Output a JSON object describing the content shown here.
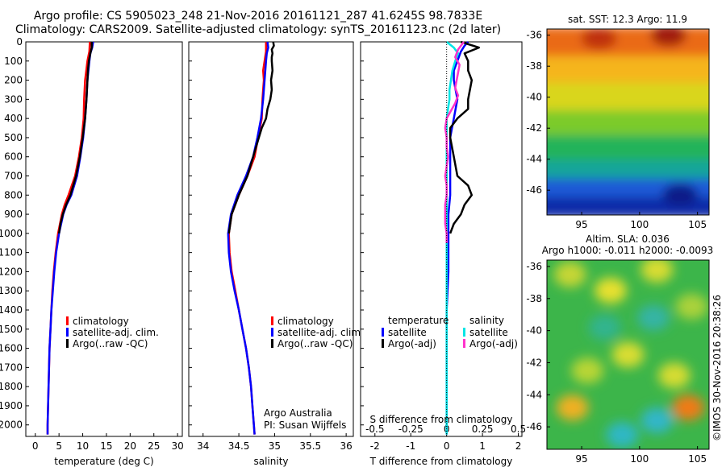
{
  "header": {
    "title_line1": "Argo profile: CS 5905023_248 21-Nov-2016 20161121_287 41.6245S 98.7833E",
    "title_line2": "Climatology: CARS2009. Satellite-adjusted climatology: synTS_20161123.nc (2d later)"
  },
  "credits": {
    "argo_line1": "Argo Australia",
    "argo_line2": "PI: Susan Wijffels",
    "imos": "©IMOS 30-Nov-2016 20:38:26"
  },
  "colors": {
    "climatology": "#ff0000",
    "satellite": "#0000ff",
    "argo": "#000000",
    "salinity_satellite": "#00e5e5",
    "salinity_argo": "#ff33cc"
  },
  "chart_data": [
    {
      "type": "line",
      "xlabel": "temperature (deg C)",
      "ylabel": "",
      "xlim": [
        -2,
        31
      ],
      "ylim": [
        2060,
        0
      ],
      "xticks": [
        0,
        5,
        10,
        15,
        20,
        25,
        30
      ],
      "yticks": [
        0,
        100,
        200,
        300,
        400,
        500,
        600,
        700,
        800,
        900,
        1000,
        1100,
        1200,
        1300,
        1400,
        1500,
        1600,
        1700,
        1800,
        1900,
        2000
      ],
      "legend": [
        "climatology",
        "satellite-adj. clim.",
        "Argo(..raw -QC)"
      ],
      "legend_position": "lower-right",
      "series": [
        {
          "name": "climatology",
          "color": "#ff0000",
          "depth": [
            0,
            50,
            100,
            200,
            300,
            400,
            500,
            600,
            700,
            800,
            850,
            900,
            1000,
            1100,
            1200,
            1300,
            1400,
            1500,
            1600,
            1700,
            1800,
            1900,
            2000,
            2050
          ],
          "values": [
            11.5,
            11.4,
            11.0,
            10.5,
            10.3,
            10.2,
            9.8,
            9.2,
            8.4,
            7.0,
            6.2,
            5.6,
            4.8,
            4.3,
            3.9,
            3.6,
            3.4,
            3.2,
            3.0,
            2.9,
            2.8,
            2.7,
            2.6,
            2.6
          ]
        },
        {
          "name": "satellite-adj. clim.",
          "color": "#0000ff",
          "depth": [
            0,
            30,
            60,
            100,
            150,
            200,
            300,
            400,
            500,
            600,
            700,
            800,
            850,
            900,
            1000,
            1100,
            1200,
            1300,
            1400,
            1500,
            1600,
            1700,
            1800,
            1900,
            2000,
            2050
          ],
          "values": [
            12.2,
            12.0,
            11.6,
            11.4,
            11.2,
            11.0,
            10.8,
            10.5,
            10.1,
            9.5,
            8.8,
            7.6,
            6.6,
            5.9,
            5.0,
            4.4,
            4.0,
            3.7,
            3.4,
            3.2,
            3.0,
            2.9,
            2.8,
            2.7,
            2.6,
            2.6
          ]
        },
        {
          "name": "Argo(..raw -QC)",
          "color": "#000000",
          "depth": [
            0,
            30,
            60,
            100,
            150,
            200,
            300,
            400,
            500,
            600,
            700,
            800,
            850,
            900,
            950,
            1000
          ],
          "values": [
            11.9,
            11.9,
            11.6,
            11.3,
            11.1,
            11.0,
            10.8,
            10.5,
            10.0,
            9.4,
            8.6,
            7.4,
            6.5,
            5.8,
            5.3,
            5.0
          ]
        }
      ]
    },
    {
      "type": "line",
      "xlabel": "salinity",
      "ylabel": "",
      "xlim": [
        33.8,
        36.1
      ],
      "ylim": [
        2060,
        0
      ],
      "xticks": [
        34,
        34.5,
        35,
        35.5,
        36
      ],
      "legend": [
        "climatology",
        "satellite-adj. clim.",
        "Argo(..raw -QC)"
      ],
      "legend_position": "lower-right",
      "series": [
        {
          "name": "climatology",
          "color": "#ff0000",
          "depth": [
            0,
            50,
            100,
            150,
            200,
            250,
            300,
            400,
            500,
            600,
            700,
            800,
            900,
            1000,
            1100,
            1200,
            1300,
            1400,
            1500,
            1600,
            1700,
            1800,
            1900,
            2000,
            2050
          ],
          "values": [
            34.88,
            34.88,
            34.86,
            34.84,
            34.85,
            34.84,
            34.83,
            34.82,
            34.77,
            34.72,
            34.62,
            34.5,
            34.4,
            34.36,
            34.37,
            34.4,
            34.45,
            34.5,
            34.55,
            34.6,
            34.64,
            34.67,
            34.69,
            34.71,
            34.72
          ]
        },
        {
          "name": "satellite-adj. clim.",
          "color": "#0000ff",
          "depth": [
            0,
            30,
            60,
            100,
            150,
            200,
            300,
            400,
            500,
            600,
            700,
            800,
            900,
            1000,
            1100,
            1200,
            1300,
            1400,
            1500,
            1600,
            1700,
            1800,
            1900,
            2000,
            2050
          ],
          "values": [
            34.9,
            34.91,
            34.89,
            34.88,
            34.87,
            34.86,
            34.84,
            34.81,
            34.76,
            34.7,
            34.6,
            34.48,
            34.39,
            34.35,
            34.36,
            34.39,
            34.44,
            34.5,
            34.55,
            34.6,
            34.64,
            34.67,
            34.69,
            34.71,
            34.72
          ]
        },
        {
          "name": "Argo(..raw -QC)",
          "color": "#000000",
          "depth": [
            0,
            20,
            40,
            60,
            80,
            100,
            150,
            200,
            250,
            300,
            350,
            400,
            450,
            500,
            600,
            700,
            800,
            900,
            1000
          ],
          "values": [
            34.98,
            34.99,
            34.96,
            34.97,
            34.96,
            34.96,
            34.97,
            34.95,
            34.96,
            34.94,
            34.9,
            34.88,
            34.82,
            34.78,
            34.7,
            34.62,
            34.5,
            34.4,
            34.36
          ]
        }
      ]
    },
    {
      "type": "line",
      "xlabel": "T difference from climatology",
      "x2label": "S difference from climatology",
      "xlim": [
        -2.4,
        2.1
      ],
      "x2lim": [
        -0.6,
        0.525
      ],
      "ylim": [
        2060,
        0
      ],
      "xticks": [
        -2,
        -1,
        0,
        1,
        2
      ],
      "x2ticks": [
        -0.5,
        -0.25,
        0,
        0.25,
        0.5
      ],
      "legend_temperature_title": "temperature",
      "legend_salinity_title": "salinity",
      "legend_temperature": [
        "satellite",
        "Argo(-adj)"
      ],
      "legend_salinity": [
        "satellite",
        "Argo(-adj)"
      ],
      "legend_position": "upper-right",
      "series": [
        {
          "name": "satellite",
          "group": "temperature",
          "color": "#0000ff",
          "depth": [
            0,
            20,
            50,
            100,
            150,
            200,
            300,
            400,
            500,
            600,
            700,
            800,
            900,
            1000,
            1200,
            1400,
            1600,
            1800,
            2000,
            2050
          ],
          "values": [
            0.6,
            0.5,
            0.4,
            0.3,
            0.2,
            0.2,
            0.3,
            0.2,
            0.1,
            0.1,
            0.1,
            0.1,
            0.05,
            0.05,
            0.05,
            0.0,
            0.0,
            0.0,
            0.0,
            0.0
          ]
        },
        {
          "name": "Argo(-adj)",
          "group": "temperature",
          "color": "#000000",
          "depth": [
            0,
            30,
            60,
            100,
            150,
            200,
            300,
            350,
            400,
            450,
            500,
            600,
            700,
            750,
            800,
            850,
            900,
            950,
            1000
          ],
          "values": [
            0.4,
            0.9,
            0.5,
            0.6,
            0.6,
            0.7,
            0.6,
            0.6,
            0.3,
            0.1,
            0.1,
            0.2,
            0.3,
            0.6,
            0.7,
            0.5,
            0.4,
            0.2,
            0.1
          ]
        },
        {
          "name": "satellite",
          "group": "salinity",
          "color": "#00e5e5",
          "depth": [
            0,
            30,
            60,
            100,
            150,
            200,
            250,
            300,
            350,
            400,
            500,
            600,
            800,
            1000,
            1200,
            1400,
            1600,
            1800,
            2000,
            2050
          ],
          "values": [
            0.0,
            0.05,
            0.08,
            0.06,
            0.04,
            0.03,
            0.02,
            0.02,
            0.01,
            0.0,
            0.0,
            0.0,
            0.0,
            0.0,
            0.0,
            0.0,
            0.0,
            0.0,
            0.0,
            0.0
          ]
        },
        {
          "name": "Argo(-adj)",
          "group": "salinity",
          "color": "#ff33cc",
          "depth": [
            0,
            40,
            80,
            120,
            160,
            200,
            240,
            280,
            320,
            360,
            400,
            450,
            500,
            550,
            600,
            650,
            700,
            750,
            800,
            850,
            900,
            950,
            1000,
            1050
          ],
          "values": [
            0.12,
            0.08,
            0.06,
            0.09,
            0.08,
            0.07,
            0.06,
            0.08,
            0.06,
            0.03,
            0.0,
            -0.01,
            0.0,
            0.0,
            0.01,
            0.0,
            -0.01,
            0.0,
            0.0,
            -0.01,
            -0.01,
            -0.01,
            0.0,
            0.0
          ]
        }
      ]
    },
    {
      "type": "heatmap",
      "title": "sat. SST: 12.3 Argo: 11.9",
      "xlim": [
        92,
        106
      ],
      "ylim": [
        -47.6,
        -35.6
      ],
      "xticks": [
        95,
        100,
        105
      ],
      "yticks": [
        -36,
        -38,
        -40,
        -42,
        -44,
        -46
      ],
      "bands": [
        {
          "lat_top": -35.6,
          "lat_bottom": -37.5,
          "color": "#ea6a18"
        },
        {
          "lat_top": -37.5,
          "lat_bottom": -39.2,
          "color": "#f5b51c"
        },
        {
          "lat_top": -39.2,
          "lat_bottom": -41.0,
          "color": "#d9d61a"
        },
        {
          "lat_top": -41.0,
          "lat_bottom": -42.6,
          "color": "#7ccb2a"
        },
        {
          "lat_top": -42.6,
          "lat_bottom": -44.2,
          "color": "#22b35a"
        },
        {
          "lat_top": -44.2,
          "lat_bottom": -45.4,
          "color": "#13a59a"
        },
        {
          "lat_top": -45.4,
          "lat_bottom": -46.6,
          "color": "#1c5ad6"
        },
        {
          "lat_top": -46.6,
          "lat_bottom": -47.6,
          "color": "#0c2aa8"
        }
      ],
      "hotspots": [
        {
          "lon": 102.5,
          "lat": -36.0,
          "color": "#a11c0c"
        },
        {
          "lon": 96.5,
          "lat": -36.2,
          "color": "#c0330f"
        },
        {
          "lon": 103.5,
          "lat": -46.3,
          "color": "#0a1a88"
        }
      ]
    },
    {
      "type": "heatmap",
      "title": "Altim. SLA: 0.036",
      "subtitle": "Argo h1000: -0.011 h2000: -0.0093",
      "xlim": [
        92,
        106
      ],
      "ylim": [
        -47.4,
        -35.6
      ],
      "xticks": [
        95,
        100,
        105
      ],
      "yticks": [
        -36,
        -38,
        -40,
        -42,
        -44,
        -46
      ],
      "background_color": "#3cb54a",
      "blobs": [
        {
          "lon": 94.0,
          "lat": -36.5,
          "color": "#c6d634"
        },
        {
          "lon": 97.5,
          "lat": -37.5,
          "color": "#e7e02e"
        },
        {
          "lon": 101.5,
          "lat": -36.2,
          "color": "#d8dc30"
        },
        {
          "lon": 104.5,
          "lat": -38.5,
          "color": "#aad23a"
        },
        {
          "lon": 99.0,
          "lat": -41.5,
          "color": "#d9dd30"
        },
        {
          "lon": 95.5,
          "lat": -42.5,
          "color": "#b8d534"
        },
        {
          "lon": 103.0,
          "lat": -42.8,
          "color": "#d6dc30"
        },
        {
          "lon": 94.2,
          "lat": -44.8,
          "color": "#f0b020"
        },
        {
          "lon": 104.2,
          "lat": -44.8,
          "color": "#f07a18"
        },
        {
          "lon": 98.5,
          "lat": -46.5,
          "color": "#2fb7c4"
        },
        {
          "lon": 101.5,
          "lat": -45.6,
          "color": "#33b6c8"
        },
        {
          "lon": 97.0,
          "lat": -39.8,
          "color": "#32b48e"
        },
        {
          "lon": 101.2,
          "lat": -39.2,
          "color": "#34b4a4"
        }
      ]
    }
  ]
}
